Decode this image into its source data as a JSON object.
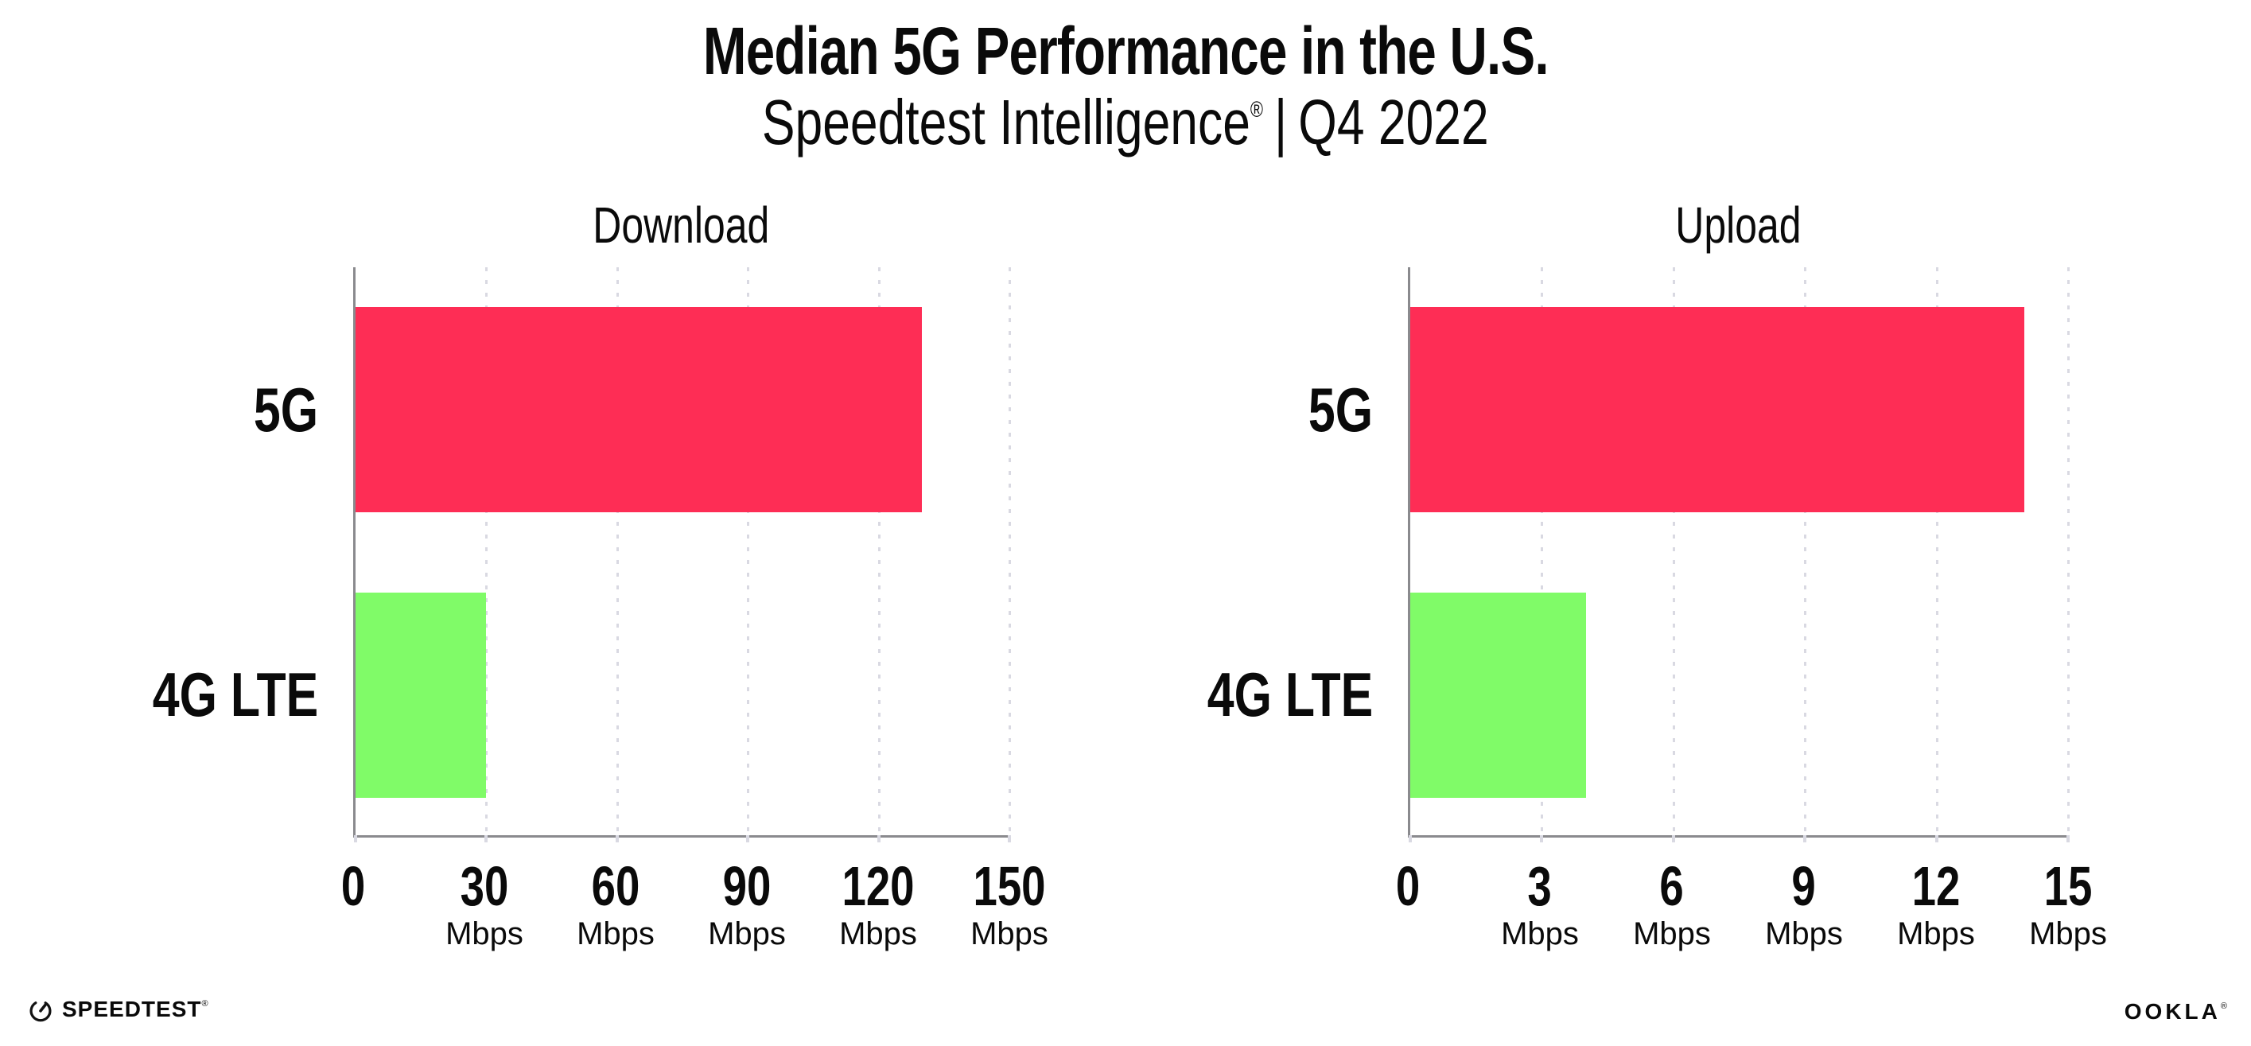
{
  "header": {
    "title": "Median 5G Performance in the U.S.",
    "subtitle": {
      "brand": "Speedtest Intelligence",
      "registered": "®",
      "separator": "|",
      "period": "Q4 2022"
    }
  },
  "colors": {
    "bar_5g": "#fe2d55",
    "bar_4g_lte": "#80fb68",
    "axis": "#8a8a8e",
    "grid": "#d9d9e2",
    "text": "#0a0a0a",
    "background": "#ffffff"
  },
  "chart_data": [
    {
      "type": "bar",
      "orientation": "horizontal",
      "title": "Download",
      "unit": "Mbps",
      "categories": [
        "5G",
        "4G LTE"
      ],
      "values": [
        130,
        30
      ],
      "series_colors": [
        "#fe2d55",
        "#80fb68"
      ],
      "xlim": [
        0,
        150
      ],
      "xticks": [
        0,
        30,
        60,
        90,
        120,
        150
      ],
      "grid": true,
      "legend": false
    },
    {
      "type": "bar",
      "orientation": "horizontal",
      "title": "Upload",
      "unit": "Mbps",
      "categories": [
        "5G",
        "4G LTE"
      ],
      "values": [
        14,
        4
      ],
      "series_colors": [
        "#fe2d55",
        "#80fb68"
      ],
      "xlim": [
        0,
        15
      ],
      "xticks": [
        0,
        3,
        6,
        9,
        12,
        15
      ],
      "grid": true,
      "legend": false
    }
  ],
  "footer": {
    "speedtest_wordmark": "SPEEDTEST",
    "speedtest_registered": "®",
    "ookla_wordmark": "OOKLA",
    "ookla_registered": "®"
  }
}
